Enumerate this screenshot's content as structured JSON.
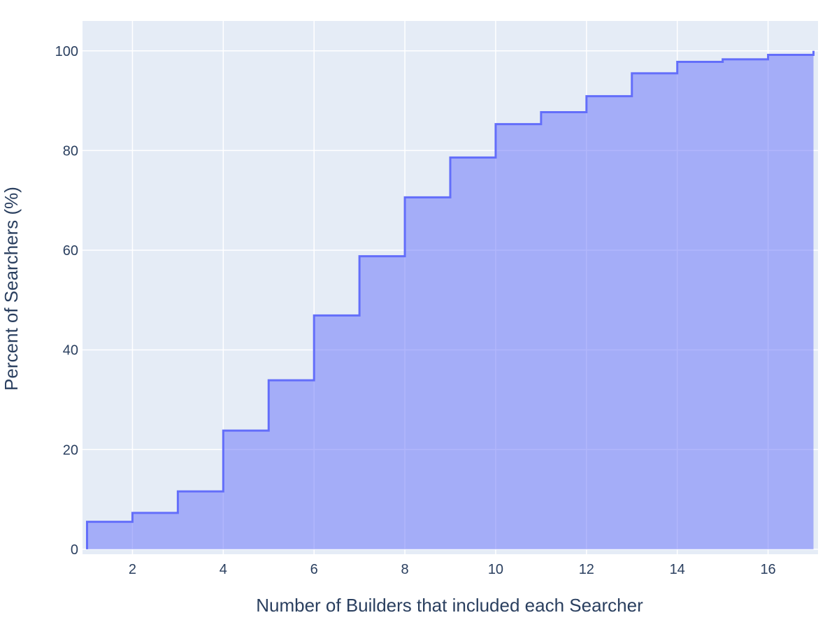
{
  "chart_data": {
    "type": "area",
    "line_shape": "step",
    "title": "",
    "xlabel": "Number of Builders that included each Searcher",
    "ylabel": "Percent of Searchers (%)",
    "xlim": [
      0.9,
      17.1
    ],
    "ylim": [
      -1,
      106
    ],
    "x_ticks": [
      2,
      4,
      6,
      8,
      10,
      12,
      14,
      16
    ],
    "y_ticks": [
      0,
      20,
      40,
      60,
      80,
      100
    ],
    "grid": true,
    "legend": "none",
    "series": [
      {
        "x": [
          1,
          2,
          3,
          4,
          5,
          6,
          7,
          8,
          9,
          10,
          11,
          12,
          13,
          14,
          15,
          16,
          17
        ],
        "y": [
          5.5,
          7.3,
          11.6,
          23.8,
          33.9,
          46.9,
          58.8,
          70.6,
          78.6,
          85.3,
          87.7,
          90.9,
          95.5,
          97.8,
          98.3,
          99.2,
          100
        ]
      }
    ],
    "colors": {
      "line": "#636efa",
      "fill": "rgba(99,110,250,0.5)",
      "plot_bg": "#e5ecf6",
      "grid": "#ffffff",
      "text": "#2a3f5f"
    }
  }
}
